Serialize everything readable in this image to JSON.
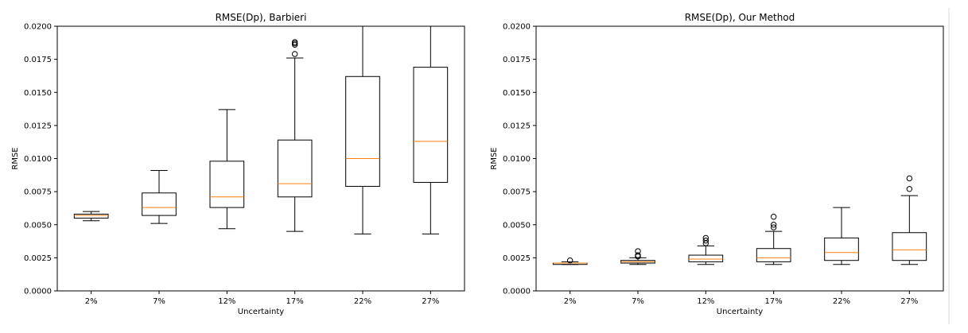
{
  "chart_data": [
    {
      "type": "boxplot",
      "title": "RMSE(Dp), Barbieri",
      "xlabel": "Uncertainty",
      "ylabel": "RMSE",
      "ylim": [
        0,
        0.02
      ],
      "yticks": [
        "0.0000",
        "0.0025",
        "0.0050",
        "0.0075",
        "0.0100",
        "0.0125",
        "0.0150",
        "0.0175",
        "0.0200"
      ],
      "categories": [
        "2%",
        "7%",
        "12%",
        "17%",
        "22%",
        "27%"
      ],
      "boxes": [
        {
          "whislo": 0.0053,
          "q1": 0.0055,
          "med": 0.0057,
          "q3": 0.0058,
          "whishi": 0.006,
          "fliers": []
        },
        {
          "whislo": 0.0051,
          "q1": 0.0057,
          "med": 0.0063,
          "q3": 0.0074,
          "whishi": 0.0091,
          "fliers": []
        },
        {
          "whislo": 0.0047,
          "q1": 0.0063,
          "med": 0.0071,
          "q3": 0.0098,
          "whishi": 0.0137,
          "fliers": []
        },
        {
          "whislo": 0.0045,
          "q1": 0.0071,
          "med": 0.0081,
          "q3": 0.0114,
          "whishi": 0.0176,
          "fliers": [
            0.0179,
            0.0186,
            0.0187,
            0.0188
          ]
        },
        {
          "whislo": 0.0043,
          "q1": 0.0079,
          "med": 0.01,
          "q3": 0.0162,
          "whishi": 0.0205,
          "fliers": []
        },
        {
          "whislo": 0.0043,
          "q1": 0.0082,
          "med": 0.0113,
          "q3": 0.0169,
          "whishi": 0.0205,
          "fliers": []
        }
      ]
    },
    {
      "type": "boxplot",
      "title": "RMSE(Dp), Our Method",
      "xlabel": "Uncertainty",
      "ylabel": "RMSE",
      "ylim": [
        0,
        0.02
      ],
      "yticks": [
        "0.0000",
        "0.0025",
        "0.0050",
        "0.0075",
        "0.0100",
        "0.0125",
        "0.0150",
        "0.0175",
        "0.0200"
      ],
      "categories": [
        "2%",
        "7%",
        "12%",
        "17%",
        "22%",
        "27%"
      ],
      "boxes": [
        {
          "whislo": 0.002,
          "q1": 0.002,
          "med": 0.0021,
          "q3": 0.0021,
          "whishi": 0.0022,
          "fliers": [
            0.0023
          ]
        },
        {
          "whislo": 0.002,
          "q1": 0.0021,
          "med": 0.0022,
          "q3": 0.0023,
          "whishi": 0.0025,
          "fliers": [
            0.0026,
            0.0027,
            0.003
          ]
        },
        {
          "whislo": 0.002,
          "q1": 0.0022,
          "med": 0.0024,
          "q3": 0.0027,
          "whishi": 0.0034,
          "fliers": [
            0.0036,
            0.0038,
            0.004
          ]
        },
        {
          "whislo": 0.002,
          "q1": 0.0022,
          "med": 0.0025,
          "q3": 0.0032,
          "whishi": 0.0045,
          "fliers": [
            0.0048,
            0.005,
            0.0056
          ]
        },
        {
          "whislo": 0.002,
          "q1": 0.0023,
          "med": 0.0029,
          "q3": 0.004,
          "whishi": 0.0063,
          "fliers": []
        },
        {
          "whislo": 0.002,
          "q1": 0.0023,
          "med": 0.0031,
          "q3": 0.0044,
          "whishi": 0.0072,
          "fliers": [
            0.0077,
            0.0085
          ]
        }
      ]
    }
  ],
  "colors": {
    "median": "#ff7f0e",
    "stroke": "#000000",
    "background": "#ffffff"
  }
}
